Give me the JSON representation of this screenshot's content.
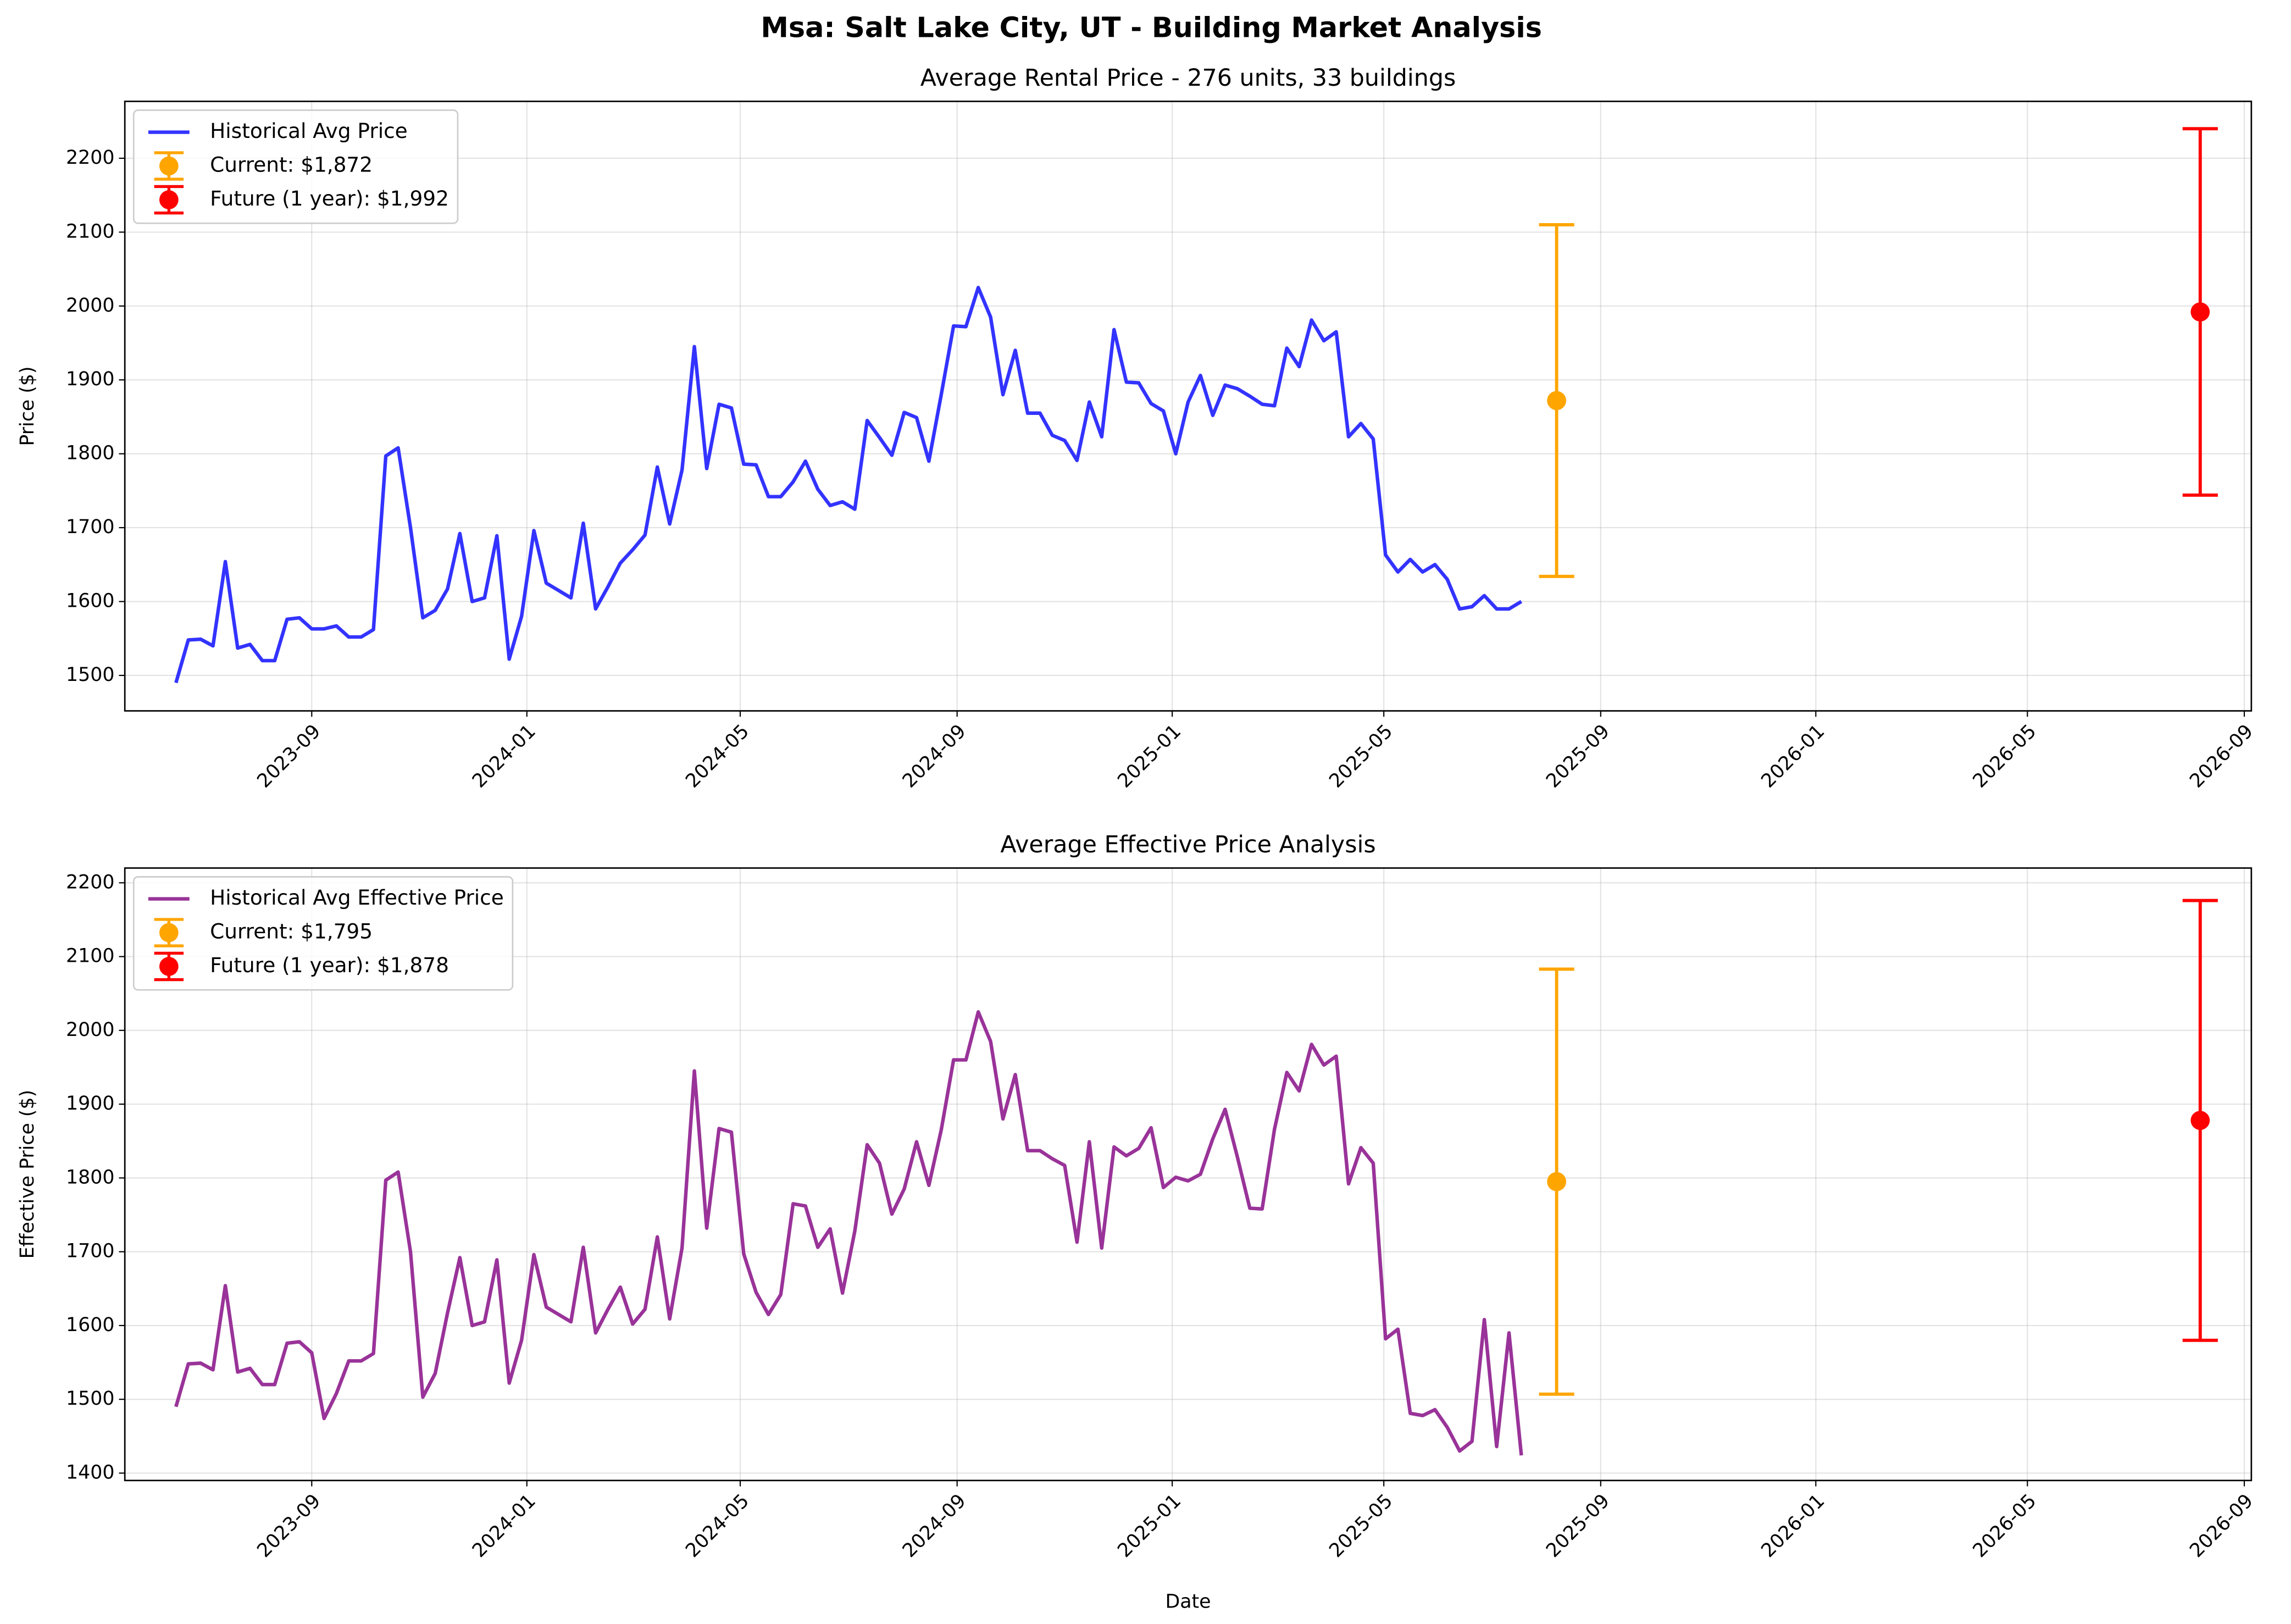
{
  "suptitle": "Msa: Salt Lake City, UT - Building Market Analysis",
  "chart_data": [
    {
      "type": "line",
      "title": "Average Rental Price - 276 units, 33 buildings",
      "ylabel": "Price ($)",
      "x": [
        "2023-06-16",
        "2023-06-23",
        "2023-06-30",
        "2023-07-07",
        "2023-07-14",
        "2023-07-21",
        "2023-07-28",
        "2023-08-04",
        "2023-08-11",
        "2023-08-18",
        "2023-08-25",
        "2023-09-01",
        "2023-09-08",
        "2023-09-15",
        "2023-09-22",
        "2023-09-29",
        "2023-10-06",
        "2023-10-13",
        "2023-10-20",
        "2023-10-27",
        "2023-11-03",
        "2023-11-10",
        "2023-11-17",
        "2023-11-24",
        "2023-12-01",
        "2023-12-08",
        "2023-12-15",
        "2023-12-22",
        "2023-12-29",
        "2024-01-05",
        "2024-01-12",
        "2024-01-19",
        "2024-01-26",
        "2024-02-02",
        "2024-02-09",
        "2024-02-16",
        "2024-02-23",
        "2024-03-01",
        "2024-03-08",
        "2024-03-15",
        "2024-03-22",
        "2024-03-29",
        "2024-04-05",
        "2024-04-12",
        "2024-04-19",
        "2024-04-26",
        "2024-05-03",
        "2024-05-10",
        "2024-05-17",
        "2024-05-24",
        "2024-05-31",
        "2024-06-07",
        "2024-06-14",
        "2024-06-21",
        "2024-06-28",
        "2024-07-05",
        "2024-07-12",
        "2024-07-19",
        "2024-07-26",
        "2024-08-02",
        "2024-08-09",
        "2024-08-16",
        "2024-08-23",
        "2024-08-30",
        "2024-09-06",
        "2024-09-13",
        "2024-09-20",
        "2024-09-27",
        "2024-10-04",
        "2024-10-11",
        "2024-10-18",
        "2024-10-25",
        "2024-11-01",
        "2024-11-08",
        "2024-11-15",
        "2024-11-22",
        "2024-11-29",
        "2024-12-06",
        "2024-12-13",
        "2024-12-20",
        "2024-12-27",
        "2025-01-03",
        "2025-01-10",
        "2025-01-17",
        "2025-01-24",
        "2025-01-31",
        "2025-02-07",
        "2025-02-14",
        "2025-02-21",
        "2025-02-28",
        "2025-03-07",
        "2025-03-14",
        "2025-03-21",
        "2025-03-28",
        "2025-04-04",
        "2025-04-11",
        "2025-04-18",
        "2025-04-25",
        "2025-05-02",
        "2025-05-09",
        "2025-05-16",
        "2025-05-23",
        "2025-05-30",
        "2025-06-06",
        "2025-06-13",
        "2025-06-20",
        "2025-06-27",
        "2025-07-04",
        "2025-07-11",
        "2025-07-18"
      ],
      "series": [
        {
          "name": "Historical Avg Price",
          "color": "#3333ff",
          "values": [
            1490,
            1548,
            1549,
            1540,
            1654,
            1537,
            1542,
            1520,
            1520,
            1576,
            1578,
            1563,
            1563,
            1567,
            1552,
            1552,
            1562,
            1797,
            1808,
            1700,
            1578,
            1588,
            1617,
            1692,
            1600,
            1605,
            1689,
            1522,
            1580,
            1696,
            1625,
            1615,
            1605,
            1706,
            1590,
            1620,
            1652,
            1670,
            1690,
            1782,
            1705,
            1778,
            1945,
            1780,
            1867,
            1862,
            1786,
            1785,
            1742,
            1742,
            1762,
            1790,
            1752,
            1730,
            1735,
            1725,
            1845,
            1822,
            1798,
            1856,
            1849,
            1790,
            1880,
            1973,
            1972,
            2025,
            1985,
            1880,
            1940,
            1855,
            1855,
            1825,
            1818,
            1791,
            1870,
            1823,
            1968,
            1897,
            1896,
            1868,
            1858,
            1800,
            1870,
            1906,
            1852,
            1893,
            1888,
            1878,
            1867,
            1865,
            1943,
            1918,
            1981,
            1953,
            1965,
            1823,
            1841,
            1820,
            1663,
            1640,
            1657,
            1640,
            1650,
            1630,
            1590,
            1593,
            1608,
            1590,
            1590,
            1600
          ]
        },
        {
          "name": "Current: $1,872",
          "color": "#ffa500",
          "x": [
            "2025-08-07"
          ],
          "values": [
            1872
          ],
          "errors": [
            238
          ]
        },
        {
          "name": "Future (1 year): $1,992",
          "color": "#ff0000",
          "x": [
            "2026-08-07"
          ],
          "values": [
            1992
          ],
          "errors": [
            248
          ]
        }
      ],
      "xlim": [
        "2023-05-18",
        "2026-09-05"
      ],
      "ylim": [
        1452,
        2277
      ],
      "xticks": [
        "2023-09",
        "2024-01",
        "2024-05",
        "2024-09",
        "2025-01",
        "2025-05",
        "2025-09",
        "2026-01",
        "2026-05",
        "2026-09"
      ],
      "yticks": [
        1500,
        1600,
        1700,
        1800,
        1900,
        2000,
        2100,
        2200
      ],
      "grid": true,
      "legend": "upper left"
    },
    {
      "type": "line",
      "title": "Average Effective Price Analysis",
      "ylabel": "Effective Price ($)",
      "xlabel": "Date",
      "x": [
        "2023-06-16",
        "2023-06-23",
        "2023-06-30",
        "2023-07-07",
        "2023-07-14",
        "2023-07-21",
        "2023-07-28",
        "2023-08-04",
        "2023-08-11",
        "2023-08-18",
        "2023-08-25",
        "2023-09-01",
        "2023-09-08",
        "2023-09-15",
        "2023-09-22",
        "2023-09-29",
        "2023-10-06",
        "2023-10-13",
        "2023-10-20",
        "2023-10-27",
        "2023-11-03",
        "2023-11-10",
        "2023-11-17",
        "2023-11-24",
        "2023-12-01",
        "2023-12-08",
        "2023-12-15",
        "2023-12-22",
        "2023-12-29",
        "2024-01-05",
        "2024-01-12",
        "2024-01-19",
        "2024-01-26",
        "2024-02-02",
        "2024-02-09",
        "2024-02-16",
        "2024-02-23",
        "2024-03-01",
        "2024-03-08",
        "2024-03-15",
        "2024-03-22",
        "2024-03-29",
        "2024-04-05",
        "2024-04-12",
        "2024-04-19",
        "2024-04-26",
        "2024-05-03",
        "2024-05-10",
        "2024-05-17",
        "2024-05-24",
        "2024-05-31",
        "2024-06-07",
        "2024-06-14",
        "2024-06-21",
        "2024-06-28",
        "2024-07-05",
        "2024-07-12",
        "2024-07-19",
        "2024-07-26",
        "2024-08-02",
        "2024-08-09",
        "2024-08-16",
        "2024-08-23",
        "2024-08-30",
        "2024-09-06",
        "2024-09-13",
        "2024-09-20",
        "2024-09-27",
        "2024-10-04",
        "2024-10-11",
        "2024-10-18",
        "2024-10-25",
        "2024-11-01",
        "2024-11-08",
        "2024-11-15",
        "2024-11-22",
        "2024-11-29",
        "2024-12-06",
        "2024-12-13",
        "2024-12-20",
        "2024-12-27",
        "2025-01-03",
        "2025-01-10",
        "2025-01-17",
        "2025-01-24",
        "2025-01-31",
        "2025-02-07",
        "2025-02-14",
        "2025-02-21",
        "2025-02-28",
        "2025-03-07",
        "2025-03-14",
        "2025-03-21",
        "2025-03-28",
        "2025-04-04",
        "2025-04-11",
        "2025-04-18",
        "2025-04-25",
        "2025-05-02",
        "2025-05-09",
        "2025-05-16",
        "2025-05-23",
        "2025-05-30",
        "2025-06-06",
        "2025-06-13",
        "2025-06-20",
        "2025-06-27",
        "2025-07-04",
        "2025-07-11",
        "2025-07-18"
      ],
      "series": [
        {
          "name": "Historical Avg Effective Price",
          "color": "#993399",
          "values": [
            1490,
            1548,
            1549,
            1540,
            1654,
            1537,
            1542,
            1520,
            1520,
            1576,
            1578,
            1563,
            1474,
            1508,
            1552,
            1552,
            1562,
            1797,
            1808,
            1700,
            1503,
            1535,
            1617,
            1692,
            1600,
            1605,
            1689,
            1522,
            1580,
            1696,
            1625,
            1615,
            1605,
            1706,
            1590,
            1622,
            1652,
            1602,
            1622,
            1720,
            1609,
            1705,
            1945,
            1732,
            1867,
            1862,
            1697,
            1645,
            1615,
            1642,
            1765,
            1762,
            1706,
            1731,
            1644,
            1728,
            1845,
            1820,
            1751,
            1785,
            1849,
            1790,
            1865,
            1960,
            1960,
            2025,
            1985,
            1880,
            1940,
            1837,
            1837,
            1826,
            1817,
            1713,
            1849,
            1705,
            1842,
            1830,
            1840,
            1868,
            1787,
            1801,
            1796,
            1805,
            1853,
            1893,
            1828,
            1759,
            1758,
            1866,
            1943,
            1918,
            1981,
            1953,
            1965,
            1792,
            1841,
            1820,
            1582,
            1595,
            1481,
            1478,
            1486,
            1462,
            1430,
            1443,
            1608,
            1436,
            1590,
            1424
          ]
        },
        {
          "name": "Current: $1,795",
          "color": "#ffa500",
          "x": [
            "2025-08-07"
          ],
          "values": [
            1795
          ],
          "errors": [
            288
          ]
        },
        {
          "name": "Future (1 year): $1,878",
          "color": "#ff0000",
          "x": [
            "2026-08-07"
          ],
          "values": [
            1878
          ],
          "errors": [
            298
          ]
        }
      ],
      "xlim": [
        "2023-05-18",
        "2026-09-05"
      ],
      "ylim": [
        1390,
        2220
      ],
      "xticks": [
        "2023-09",
        "2024-01",
        "2024-05",
        "2024-09",
        "2025-01",
        "2025-05",
        "2025-09",
        "2026-01",
        "2026-05",
        "2026-09"
      ],
      "yticks": [
        1400,
        1500,
        1600,
        1700,
        1800,
        1900,
        2000,
        2100,
        2200
      ],
      "grid": true,
      "legend": "upper left"
    }
  ]
}
